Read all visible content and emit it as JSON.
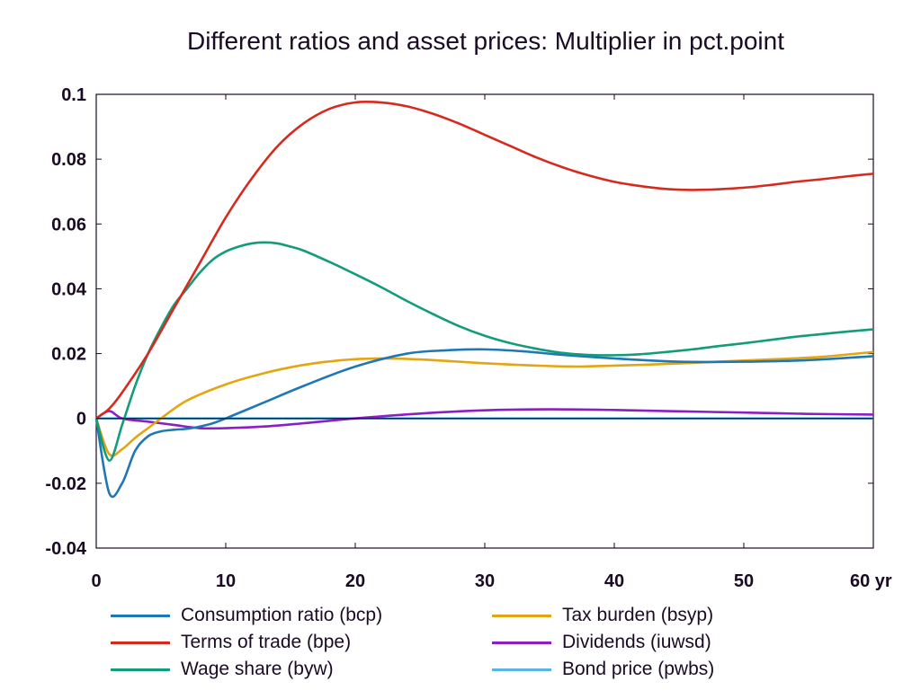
{
  "colors": {
    "bcp": "#1f77b4",
    "bpe": "#d62a1f",
    "byw": "#129c7a",
    "bsyp": "#e4a512",
    "iuwsd": "#8b1fc4",
    "pwbs": "#5ab4e6",
    "axis": "#1a0a24"
  },
  "chart_data": {
    "type": "line",
    "title": "Different ratios and asset prices: Multiplier in pct.point",
    "xlabel": "",
    "ylabel": "",
    "xlim": [
      0,
      60
    ],
    "ylim": [
      -0.04,
      0.1
    ],
    "x_ticks": [
      {
        "value": 0,
        "label": "0"
      },
      {
        "value": 10,
        "label": "10"
      },
      {
        "value": 20,
        "label": "20"
      },
      {
        "value": 30,
        "label": "30"
      },
      {
        "value": 40,
        "label": "40"
      },
      {
        "value": 50,
        "label": "50"
      },
      {
        "value": 60,
        "label": "60 yr"
      }
    ],
    "y_ticks": [
      {
        "value": 0.1,
        "label": "0.1"
      },
      {
        "value": 0.08,
        "label": "0.08"
      },
      {
        "value": 0.06,
        "label": "0.06"
      },
      {
        "value": 0.04,
        "label": "0.04"
      },
      {
        "value": 0.02,
        "label": "0.02"
      },
      {
        "value": 0,
        "label": "0"
      },
      {
        "value": -0.02,
        "label": "-0.02"
      },
      {
        "value": -0.04,
        "label": "-0.04"
      }
    ],
    "grid": false,
    "legend_position": "bottom",
    "series": [
      {
        "name": "Consumption ratio (bcp)",
        "color_key": "bcp",
        "points": [
          [
            0,
            0
          ],
          [
            1,
            -0.023
          ],
          [
            2,
            -0.02
          ],
          [
            3,
            -0.01
          ],
          [
            4,
            -0.0055
          ],
          [
            5,
            -0.004
          ],
          [
            6,
            -0.0035
          ],
          [
            7,
            -0.0032
          ],
          [
            8,
            -0.0025
          ],
          [
            9,
            -0.0015
          ],
          [
            10,
            0
          ],
          [
            13,
            0.005
          ],
          [
            16,
            0.01
          ],
          [
            20,
            0.016
          ],
          [
            24,
            0.02
          ],
          [
            27,
            0.021
          ],
          [
            30,
            0.0213
          ],
          [
            33,
            0.0207
          ],
          [
            36,
            0.0196
          ],
          [
            40,
            0.0185
          ],
          [
            45,
            0.0175
          ],
          [
            50,
            0.0175
          ],
          [
            55,
            0.018
          ],
          [
            60,
            0.0192
          ]
        ]
      },
      {
        "name": "Terms of trade (bpe)",
        "color_key": "bpe",
        "points": [
          [
            0,
            0
          ],
          [
            1,
            0.003
          ],
          [
            2,
            0.008
          ],
          [
            4,
            0.02
          ],
          [
            6,
            0.034
          ],
          [
            8,
            0.048
          ],
          [
            10,
            0.062
          ],
          [
            12,
            0.074
          ],
          [
            14,
            0.084
          ],
          [
            16,
            0.091
          ],
          [
            18,
            0.0955
          ],
          [
            20,
            0.0975
          ],
          [
            22,
            0.0975
          ],
          [
            24,
            0.0963
          ],
          [
            26,
            0.094
          ],
          [
            28,
            0.091
          ],
          [
            30,
            0.0875
          ],
          [
            32,
            0.084
          ],
          [
            34,
            0.0805
          ],
          [
            36,
            0.0775
          ],
          [
            38,
            0.075
          ],
          [
            40,
            0.073
          ],
          [
            42,
            0.0717
          ],
          [
            44,
            0.0708
          ],
          [
            46,
            0.0705
          ],
          [
            48,
            0.0707
          ],
          [
            50,
            0.0712
          ],
          [
            52,
            0.072
          ],
          [
            54,
            0.073
          ],
          [
            56,
            0.0738
          ],
          [
            58,
            0.0747
          ],
          [
            60,
            0.0755
          ]
        ]
      },
      {
        "name": "Wage share (byw)",
        "color_key": "byw",
        "points": [
          [
            0,
            0
          ],
          [
            1,
            -0.013
          ],
          [
            2,
            -0.002
          ],
          [
            3,
            0.01
          ],
          [
            4,
            0.02
          ],
          [
            5,
            0.028
          ],
          [
            6,
            0.035
          ],
          [
            7,
            0.04
          ],
          [
            8,
            0.045
          ],
          [
            9,
            0.049
          ],
          [
            10,
            0.0515
          ],
          [
            11,
            0.053
          ],
          [
            12,
            0.054
          ],
          [
            13,
            0.0543
          ],
          [
            14,
            0.054
          ],
          [
            15,
            0.053
          ],
          [
            16,
            0.0518
          ],
          [
            18,
            0.0483
          ],
          [
            20,
            0.0445
          ],
          [
            22,
            0.0405
          ],
          [
            24,
            0.0362
          ],
          [
            26,
            0.0322
          ],
          [
            28,
            0.0285
          ],
          [
            30,
            0.0255
          ],
          [
            32,
            0.0232
          ],
          [
            34,
            0.0215
          ],
          [
            36,
            0.0202
          ],
          [
            38,
            0.0196
          ],
          [
            40,
            0.0195
          ],
          [
            42,
            0.0198
          ],
          [
            44,
            0.0205
          ],
          [
            46,
            0.0213
          ],
          [
            48,
            0.0223
          ],
          [
            50,
            0.0232
          ],
          [
            52,
            0.0242
          ],
          [
            54,
            0.0252
          ],
          [
            56,
            0.026
          ],
          [
            58,
            0.0268
          ],
          [
            60,
            0.0275
          ]
        ]
      },
      {
        "name": "Tax burden (bsyp)",
        "color_key": "bsyp",
        "points": [
          [
            0,
            0
          ],
          [
            1,
            -0.011
          ],
          [
            2,
            -0.0095
          ],
          [
            3,
            -0.006
          ],
          [
            4,
            -0.003
          ],
          [
            5,
            0
          ],
          [
            7,
            0.0055
          ],
          [
            10,
            0.0105
          ],
          [
            13,
            0.014
          ],
          [
            16,
            0.0165
          ],
          [
            19,
            0.018
          ],
          [
            22,
            0.0185
          ],
          [
            25,
            0.0182
          ],
          [
            28,
            0.0175
          ],
          [
            31,
            0.0168
          ],
          [
            34,
            0.0163
          ],
          [
            37,
            0.016
          ],
          [
            40,
            0.0163
          ],
          [
            44,
            0.0168
          ],
          [
            48,
            0.0175
          ],
          [
            52,
            0.0182
          ],
          [
            56,
            0.019
          ],
          [
            60,
            0.0205
          ]
        ]
      },
      {
        "name": "Dividends (iuwsd)",
        "color_key": "iuwsd",
        "points": [
          [
            0,
            0
          ],
          [
            1,
            0.0023
          ],
          [
            2,
            0
          ],
          [
            4,
            -0.001
          ],
          [
            6,
            -0.002
          ],
          [
            8,
            -0.003
          ],
          [
            10,
            -0.003
          ],
          [
            13,
            -0.0025
          ],
          [
            16,
            -0.0015
          ],
          [
            20,
            0
          ],
          [
            25,
            0.0015
          ],
          [
            30,
            0.0025
          ],
          [
            35,
            0.0028
          ],
          [
            40,
            0.0026
          ],
          [
            45,
            0.0022
          ],
          [
            50,
            0.0018
          ],
          [
            55,
            0.0014
          ],
          [
            60,
            0.0012
          ]
        ]
      },
      {
        "name": "Bond price (pwbs)",
        "color_key": "pwbs",
        "points": [
          [
            0,
            0
          ],
          [
            60,
            0
          ]
        ]
      }
    ]
  },
  "legend": [
    {
      "label": "Consumption ratio (bcp)",
      "color_key": "bcp"
    },
    {
      "label": "Tax burden (bsyp)",
      "color_key": "bsyp"
    },
    {
      "label": "Terms of trade (bpe)",
      "color_key": "bpe"
    },
    {
      "label": "Dividends (iuwsd)",
      "color_key": "iuwsd"
    },
    {
      "label": "Wage share (byw)",
      "color_key": "byw"
    },
    {
      "label": "Bond price (pwbs)",
      "color_key": "pwbs"
    }
  ]
}
